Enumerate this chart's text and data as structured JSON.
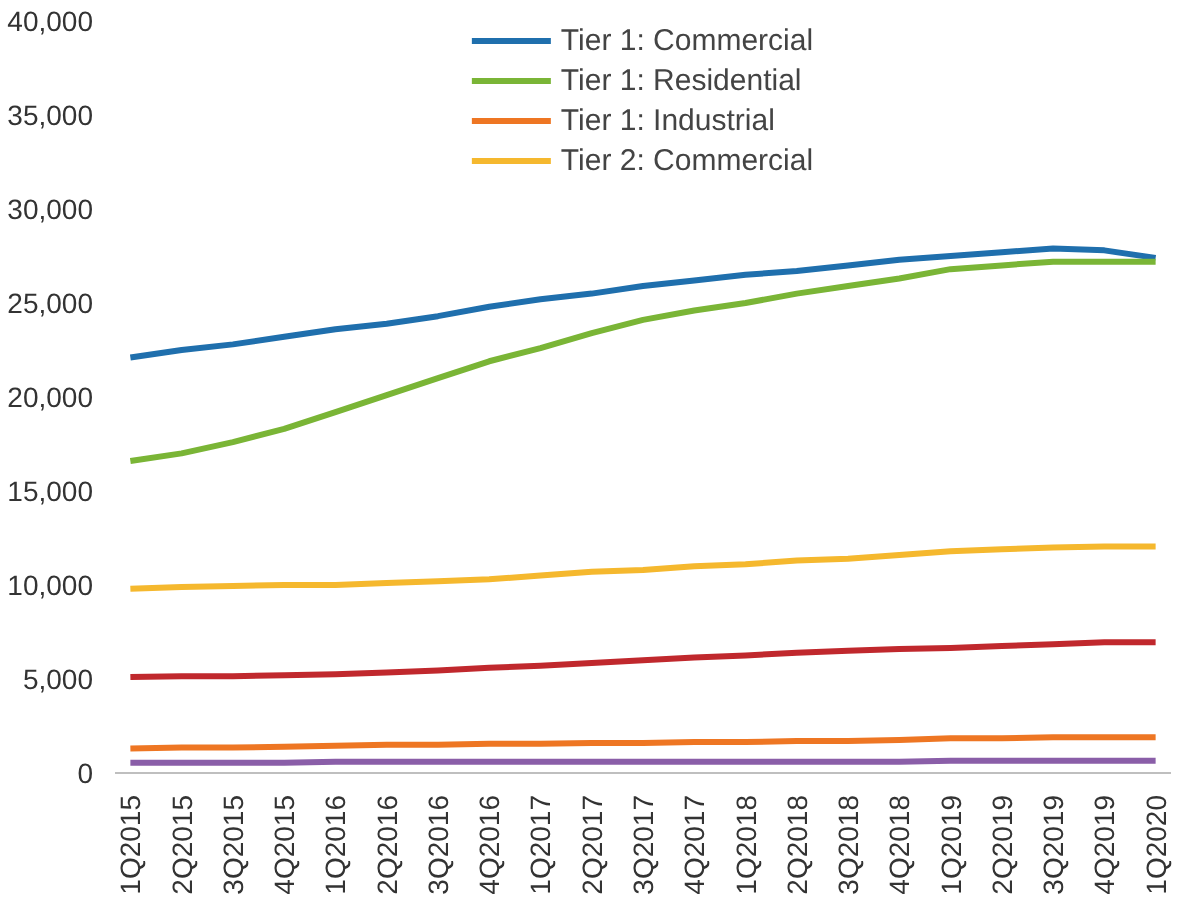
{
  "chart_data": {
    "type": "line",
    "categories": [
      "1Q2015",
      "2Q2015",
      "3Q2015",
      "4Q2015",
      "1Q2016",
      "2Q2016",
      "3Q2016",
      "4Q2016",
      "1Q2017",
      "2Q2017",
      "3Q2017",
      "4Q2017",
      "1Q2018",
      "2Q2018",
      "3Q2018",
      "4Q2018",
      "1Q2019",
      "2Q2019",
      "3Q2019",
      "4Q2019",
      "1Q2020"
    ],
    "series": [
      {
        "name": "Tier 1: Commercial",
        "color": "#1f6fad",
        "values": [
          22100,
          22500,
          22800,
          23200,
          23600,
          23900,
          24300,
          24800,
          25200,
          25500,
          25900,
          26200,
          26500,
          26700,
          27000,
          27300,
          27500,
          27700,
          27900,
          27800,
          27400
        ]
      },
      {
        "name": "Tier 1: Residential",
        "color": "#7ab536",
        "values": [
          16600,
          17000,
          17600,
          18300,
          19200,
          20100,
          21000,
          21900,
          22600,
          23400,
          24100,
          24600,
          25000,
          25500,
          25900,
          26300,
          26800,
          27000,
          27200,
          27200,
          27200
        ]
      },
      {
        "name": "Tier 1: Industrial",
        "color": "#ee7623",
        "values": [
          1300,
          1350,
          1350,
          1400,
          1450,
          1500,
          1500,
          1550,
          1550,
          1600,
          1600,
          1650,
          1650,
          1700,
          1700,
          1750,
          1850,
          1850,
          1900,
          1900,
          1900
        ]
      },
      {
        "name": "Tier 2: Commercial",
        "color": "#f5b82e",
        "values": [
          9800,
          9900,
          9950,
          10000,
          10000,
          10100,
          10200,
          10300,
          10500,
          10700,
          10800,
          11000,
          11100,
          11300,
          11400,
          11600,
          11800,
          11900,
          12000,
          12050,
          12050
        ]
      },
      {
        "color": "#c0282d",
        "values": [
          5100,
          5150,
          5150,
          5200,
          5250,
          5350,
          5450,
          5600,
          5700,
          5850,
          6000,
          6150,
          6250,
          6400,
          6500,
          6600,
          6650,
          6750,
          6850,
          6950,
          6950
        ]
      },
      {
        "color": "#8a5ea8",
        "values": [
          550,
          550,
          550,
          550,
          600,
          600,
          600,
          600,
          600,
          600,
          600,
          600,
          600,
          600,
          600,
          600,
          650,
          650,
          650,
          650,
          650
        ]
      }
    ],
    "ylim": [
      0,
      40000
    ],
    "yticks": [
      {
        "value": 0,
        "label": "0"
      },
      {
        "value": 5000,
        "label": "5,000"
      },
      {
        "value": 10000,
        "label": "10,000"
      },
      {
        "value": 15000,
        "label": "15,000"
      },
      {
        "value": 20000,
        "label": "20,000"
      },
      {
        "value": 25000,
        "label": "25,000"
      },
      {
        "value": 30000,
        "label": "30,000"
      },
      {
        "value": 35000,
        "label": "35,000"
      },
      {
        "value": 40000,
        "label": "40,000"
      }
    ],
    "grid": false,
    "legend": "top",
    "marker": "none",
    "line_style": "solid"
  }
}
